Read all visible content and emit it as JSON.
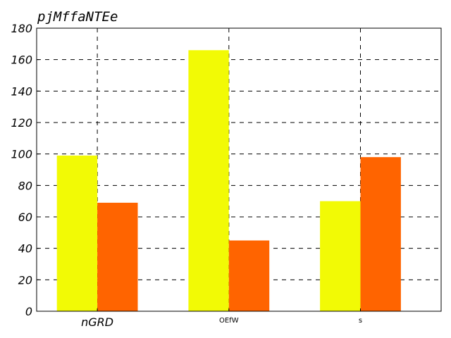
{
  "chart_data": {
    "type": "bar",
    "title": "pjMffaNTEe",
    "xlabel": "",
    "ylabel": "",
    "categories": [
      "nGRD",
      "OEfW",
      "s"
    ],
    "series": [
      {
        "values": [
          99,
          166,
          70
        ],
        "color": "#f2fa05"
      },
      {
        "values": [
          69,
          45,
          98
        ],
        "color": "#ff6400"
      }
    ],
    "ylim": [
      0,
      180
    ],
    "yticks": [
      0,
      20,
      40,
      60,
      80,
      100,
      120,
      140,
      160,
      180
    ],
    "grid": true,
    "grid_style": "dashed",
    "legend": "none"
  }
}
